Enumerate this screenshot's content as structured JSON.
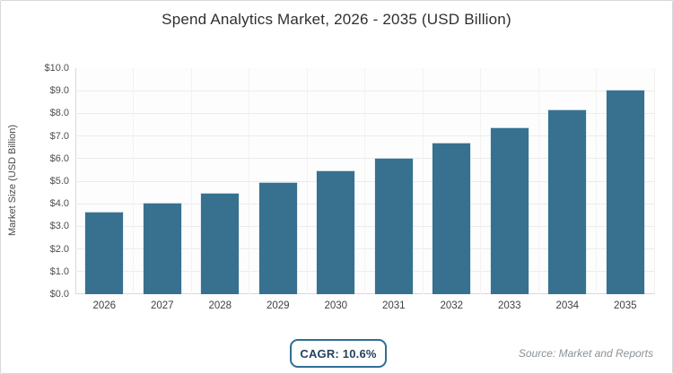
{
  "title": "Spend Analytics Market, 2026 - 2035 (USD Billion)",
  "chart_data": {
    "type": "bar",
    "title": "Spend Analytics Market, 2026 - 2035 (USD Billion)",
    "categories": [
      "2026",
      "2027",
      "2028",
      "2029",
      "2030",
      "2031",
      "2032",
      "2033",
      "2034",
      "2035"
    ],
    "values": [
      3.63,
      4.01,
      4.44,
      4.91,
      5.43,
      6.01,
      6.65,
      7.35,
      8.13,
      8.99
    ],
    "xlabel": "",
    "ylabel": "Market Size (USD Billion)",
    "ylim": [
      0,
      10
    ],
    "ytick_step": 1,
    "ytick_prefix": "$",
    "ytick_decimals": 1,
    "grid": true,
    "legend": false,
    "bar_color": "#37718f"
  },
  "footer": {
    "cagr_label": "CAGR: 10.6%",
    "source_label": "Source: Market and Reports"
  },
  "colors": {
    "bar": "#37718f",
    "badge_border": "#2e6e96",
    "badge_text": "#24425f",
    "title_text": "#2f2f2f",
    "axis_text": "#4d4d4d",
    "grid_horizontal": "#ececec",
    "grid_vertical": "#f2f2f2",
    "axis_line": "#d9d9d9",
    "frame_border": "#d8d8d8",
    "source_text": "#8b9196"
  }
}
